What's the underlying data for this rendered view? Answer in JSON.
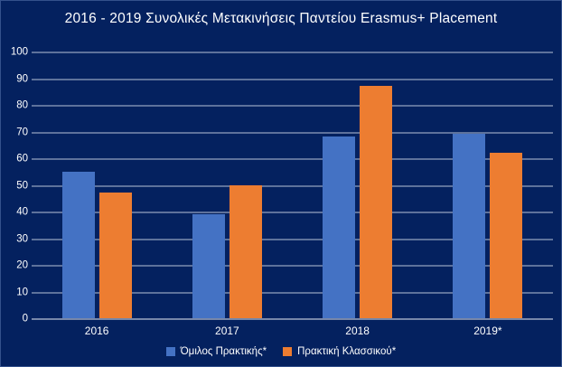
{
  "title": "2016 - 2019 Συνολικές Μετακινήσεις Παντείου Erasmus+ Placement",
  "colors": {
    "background": "#04215F",
    "grid": "#D3DAE8",
    "axis": "#EAEDF4",
    "text": "#FFFFFF",
    "series1": "#4472C4",
    "series2": "#ED7D31"
  },
  "chart_data": {
    "type": "bar",
    "title": "2016 - 2019 Συνολικές Μετακινήσεις Παντείου Erasmus+ Placement",
    "categories": [
      "2016",
      "2017",
      "2018",
      "2019*"
    ],
    "series": [
      {
        "name": "Όμιλος Πρακτικής*",
        "color": "#4472C4",
        "values": [
          55,
          39,
          68,
          69
        ]
      },
      {
        "name": "Πρακτική Κλασσικού*",
        "color": "#ED7D31",
        "values": [
          47,
          50,
          87,
          62
        ]
      }
    ],
    "xlabel": "",
    "ylabel": "",
    "ylim": [
      0,
      100
    ],
    "ytick_step": 10,
    "grid": true,
    "legend_position": "bottom"
  }
}
